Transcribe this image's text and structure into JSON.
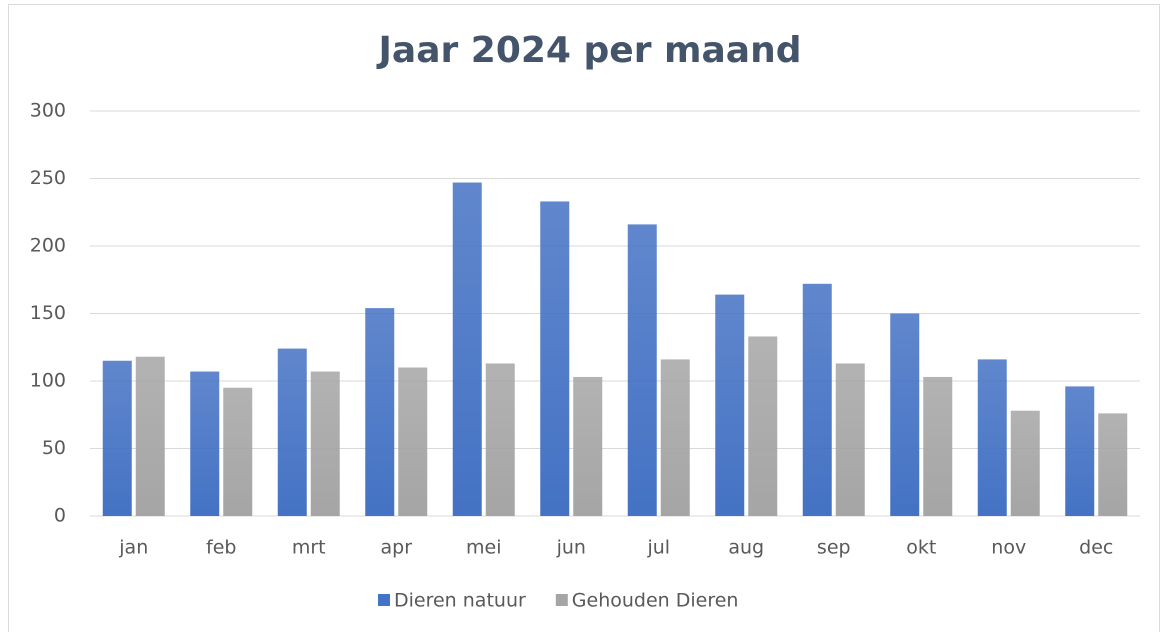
{
  "chart_data": {
    "type": "bar",
    "title": "Jaar 2024 per maand",
    "categories": [
      "jan",
      "feb",
      "mrt",
      "apr",
      "mei",
      "jun",
      "jul",
      "aug",
      "sep",
      "okt",
      "nov",
      "dec"
    ],
    "series": [
      {
        "name": "Dieren natuur",
        "color": "#4472c4",
        "values": [
          115,
          107,
          124,
          154,
          247,
          233,
          216,
          164,
          172,
          150,
          116,
          96
        ]
      },
      {
        "name": "Gehouden Dieren",
        "color": "#a5a5a5",
        "values": [
          118,
          95,
          107,
          110,
          113,
          103,
          116,
          133,
          113,
          103,
          78,
          76
        ]
      }
    ],
    "ylim": [
      0,
      300
    ],
    "yticks": [
      0,
      50,
      100,
      150,
      200,
      250,
      300
    ],
    "grid": true,
    "legend": "bottom"
  }
}
